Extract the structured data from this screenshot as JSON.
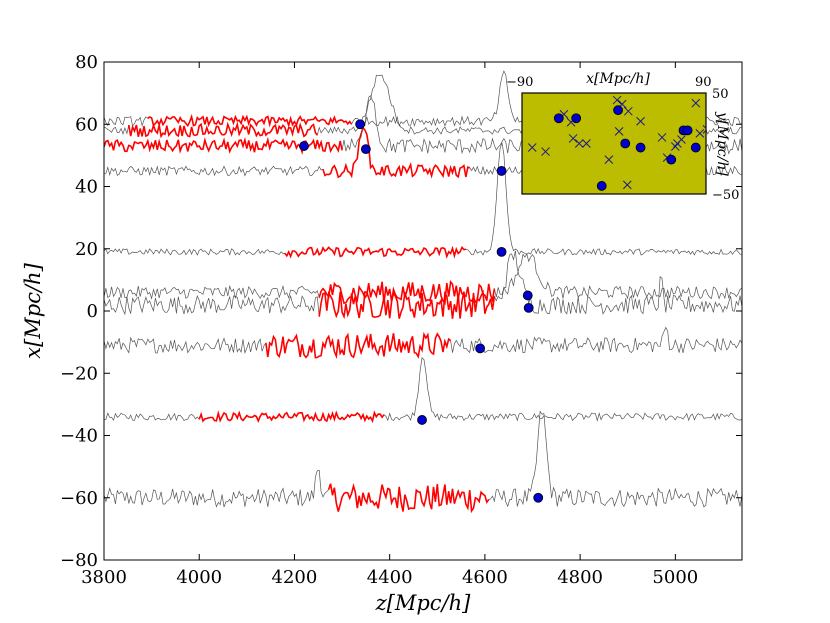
{
  "chart_data": [
    {
      "type": "line",
      "xlabel": "z[Mpc/h]",
      "ylabel": "x[Mpc/h]",
      "xlim": [
        3800,
        5140
      ],
      "ylim": [
        -80,
        80
      ],
      "xticks": [
        "3800",
        "4000",
        "4200",
        "4400",
        "4600",
        "4800",
        "5000"
      ],
      "yticks": [
        "80",
        "60",
        "40",
        "20",
        "0",
        "−20",
        "−40",
        "−60",
        "−80"
      ],
      "grid": false,
      "colors": {
        "spectra": "#555555",
        "highlight": "#ff0000",
        "points": "#0000cc"
      },
      "spectra": [
        {
          "x_range": [
            3800,
            5140
          ],
          "base": -60,
          "noise": 3.0,
          "peaks": [
            {
              "x": 4720,
              "height": 28,
              "width": 9
            },
            {
              "x": 4250,
              "height": 10,
              "width": 5
            }
          ],
          "highlight": [
            4270,
            4610
          ],
          "highlight_noise": 4.5
        },
        {
          "x_range": [
            3800,
            5140
          ],
          "base": -34,
          "noise": 1.2,
          "peaks": [
            {
              "x": 4470,
              "height": 20,
              "width": 8
            }
          ],
          "highlight": [
            4000,
            4390
          ],
          "highlight_noise": 1.4
        },
        {
          "x_range": [
            3800,
            5140
          ],
          "base": -11,
          "noise": 2.5,
          "peaks": [
            {
              "x": 4980,
              "height": 6,
              "width": 4
            }
          ],
          "highlight": [
            4140,
            4530
          ],
          "highlight_noise": 4.0
        },
        {
          "x_range": [
            3800,
            5140
          ],
          "base": 2,
          "noise": 3.0,
          "peaks": [
            {
              "x": 4660,
              "height": 16,
              "width": 14
            },
            {
              "x": 4970,
              "height": 8,
              "width": 3
            }
          ],
          "highlight": [
            4250,
            4620
          ],
          "highlight_noise": 4.5
        },
        {
          "x_range": [
            3800,
            5140
          ],
          "base": 6,
          "noise": 2.0,
          "peaks": [
            {
              "x": 4690,
              "height": 12,
              "width": 20
            }
          ],
          "highlight": [
            4250,
            4620
          ],
          "highlight_noise": 3.5
        },
        {
          "x_range": [
            3800,
            5140
          ],
          "base": 19,
          "noise": 1.0,
          "peaks": [
            {
              "x": 4635,
              "height": 36,
              "width": 9
            }
          ],
          "highlight": [
            4180,
            4560
          ],
          "highlight_noise": 1.5
        },
        {
          "x_range": [
            3800,
            5140
          ],
          "base": 45,
          "noise": 1.5,
          "peaks": [
            {
              "x": 4345,
              "height": 16,
              "width": 8
            }
          ],
          "highlight": [
            4260,
            4570
          ],
          "highlight_noise": 2.0
        },
        {
          "x_range": [
            3800,
            5140
          ],
          "base": 53,
          "noise": 2.5,
          "peaks": [
            {
              "x": 4360,
              "height": 18,
              "width": 10
            }
          ],
          "highlight": [
            3800,
            4300
          ],
          "highlight_noise": 2.0
        },
        {
          "x_range": [
            3800,
            5140
          ],
          "base": 61,
          "noise": 1.5,
          "peaks": [
            {
              "x": 4640,
              "height": 15,
              "width": 9
            }
          ],
          "highlight": [
            3890,
            4320
          ],
          "highlight_noise": 1.5
        },
        {
          "x_range": [
            3800,
            5140
          ],
          "base": 58,
          "noise": 1.2,
          "peaks": [
            {
              "x": 4380,
              "height": 18,
              "width": 20
            }
          ],
          "highlight": [
            3850,
            4250
          ],
          "highlight_noise": 2.0
        }
      ],
      "points": [
        {
          "x": 4220,
          "y": 53
        },
        {
          "x": 4338,
          "y": 60
        },
        {
          "x": 4350,
          "y": 52
        },
        {
          "x": 4635,
          "y": 45
        },
        {
          "x": 4635,
          "y": 19
        },
        {
          "x": 4690,
          "y": 5
        },
        {
          "x": 4692,
          "y": 1
        },
        {
          "x": 4590,
          "y": -12
        },
        {
          "x": 4468,
          "y": -35
        },
        {
          "x": 4712,
          "y": -60
        }
      ]
    },
    {
      "type": "scatter",
      "xlabel": "x[Mpc/h]",
      "ylabel": "y[Mpc/h]",
      "xlim": [
        -90,
        90
      ],
      "ylim": [
        -50,
        50
      ],
      "xtick_labels": [
        "−90",
        "90"
      ],
      "ytick_labels": [
        "50",
        "−50"
      ],
      "background": "#bcbc00",
      "circles": [
        {
          "x": -54,
          "y": 25
        },
        {
          "x": -37,
          "y": 25
        },
        {
          "x": 4,
          "y": 33
        },
        {
          "x": 11,
          "y": 0
        },
        {
          "x": 26,
          "y": -4
        },
        {
          "x": 56,
          "y": -16
        },
        {
          "x": -12,
          "y": -42
        },
        {
          "x": 68,
          "y": 13
        },
        {
          "x": 72,
          "y": 13
        },
        {
          "x": 80,
          "y": -4
        }
      ],
      "crosses": [
        {
          "x": -80,
          "y": -4
        },
        {
          "x": -67,
          "y": -8
        },
        {
          "x": -49,
          "y": 29
        },
        {
          "x": -42,
          "y": 21
        },
        {
          "x": -40,
          "y": 5
        },
        {
          "x": -34,
          "y": 0
        },
        {
          "x": -27,
          "y": 0
        },
        {
          "x": 3,
          "y": 43
        },
        {
          "x": 8,
          "y": 39
        },
        {
          "x": 14,
          "y": 32
        },
        {
          "x": 26,
          "y": 22
        },
        {
          "x": 5,
          "y": 12
        },
        {
          "x": -5,
          "y": -16
        },
        {
          "x": 13,
          "y": -41
        },
        {
          "x": 47,
          "y": 6
        },
        {
          "x": 52,
          "y": -14
        },
        {
          "x": 60,
          "y": -3
        },
        {
          "x": 62,
          "y": 0
        },
        {
          "x": 66,
          "y": 4
        },
        {
          "x": 80,
          "y": 40
        },
        {
          "x": 91,
          "y": 14
        },
        {
          "x": 100,
          "y": 15
        },
        {
          "x": 104,
          "y": 33
        },
        {
          "x": 108,
          "y": 45
        },
        {
          "x": 101,
          "y": -36
        },
        {
          "x": 84,
          "y": 10
        }
      ]
    }
  ]
}
